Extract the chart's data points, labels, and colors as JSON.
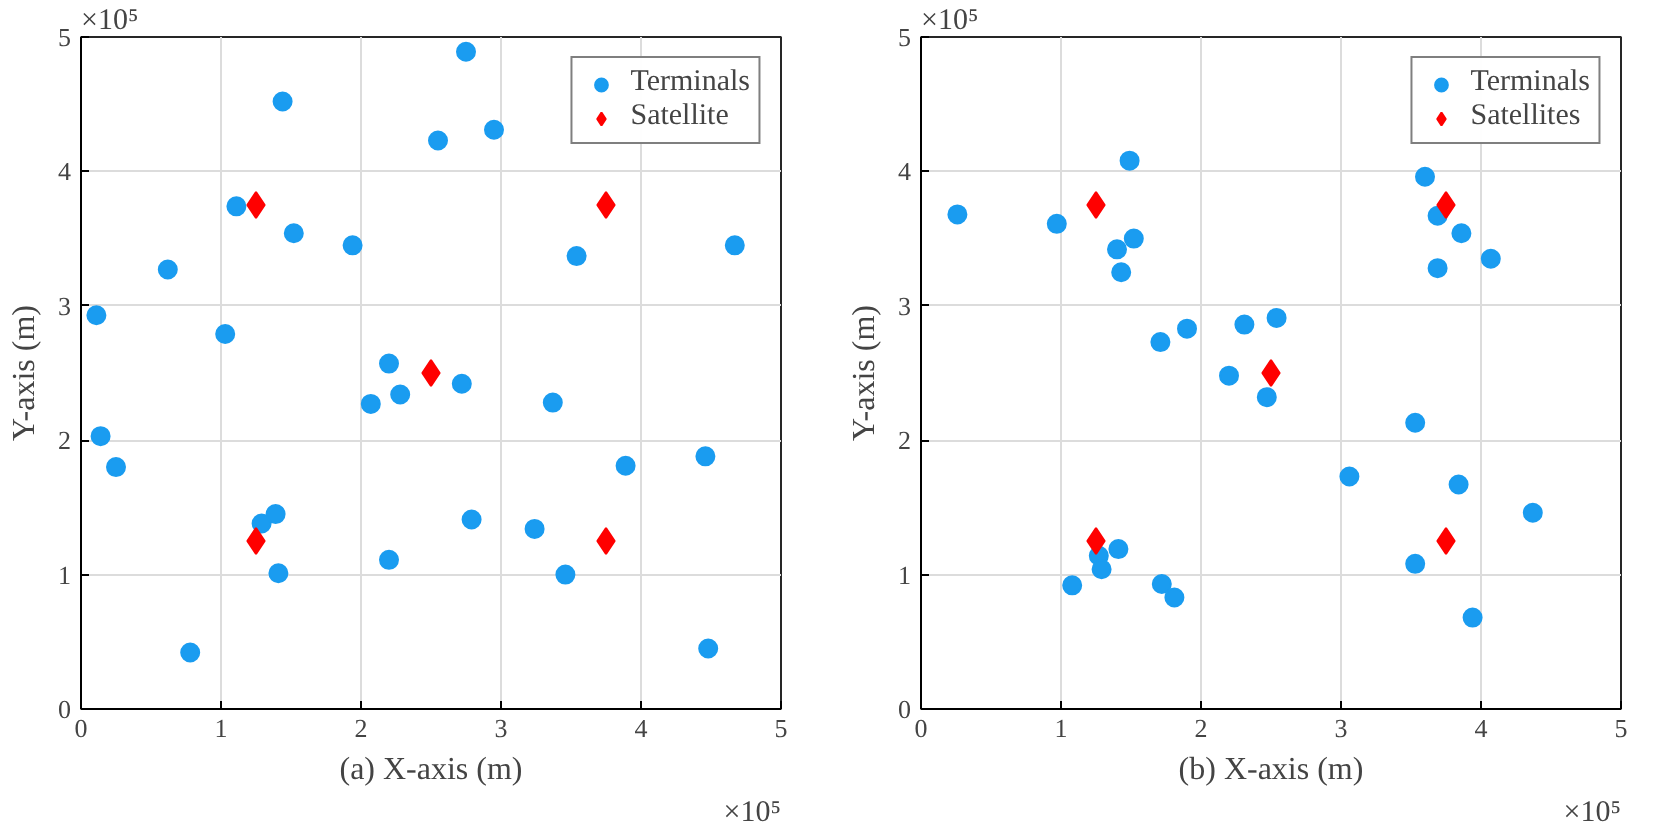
{
  "chart_data": [
    {
      "type": "scatter",
      "xlabel": "(a) X-axis (m)",
      "ylabel": "Y-axis (m)",
      "xlim": [
        0,
        5
      ],
      "ylim": [
        0,
        5
      ],
      "xticks": [
        0,
        1,
        2,
        3,
        4,
        5
      ],
      "yticks": [
        0,
        1,
        2,
        3,
        4,
        5
      ],
      "grid": true,
      "legend": "top right",
      "annotations": [
        "×10⁵",
        "×10⁵"
      ],
      "series": [
        {
          "name": "Terminals",
          "color": "#1a9cf0",
          "marker": "circle",
          "x": [
            2.75,
            1.44,
            2.55,
            2.95,
            1.11,
            1.52,
            1.94,
            0.62,
            3.54,
            4.67,
            0.11,
            1.03,
            2.2,
            2.07,
            2.28,
            2.72,
            3.37,
            0.14,
            0.25,
            3.89,
            4.46,
            1.29,
            1.39,
            1.41,
            2.2,
            2.79,
            3.24,
            3.46,
            0.78,
            4.48
          ],
          "values": [
            4.89,
            4.52,
            4.23,
            4.31,
            3.74,
            3.54,
            3.45,
            3.27,
            3.37,
            3.45,
            2.93,
            2.79,
            2.57,
            2.27,
            2.34,
            2.42,
            2.28,
            2.03,
            1.8,
            1.81,
            1.88,
            1.38,
            1.45,
            1.01,
            1.11,
            1.41,
            1.34,
            1.0,
            0.42,
            0.45
          ]
        },
        {
          "name": "Satellite",
          "color": "#ff0000",
          "marker": "diamond",
          "x": [
            1.25,
            3.75,
            2.5,
            1.25,
            3.75
          ],
          "values": [
            3.75,
            3.75,
            2.5,
            1.25,
            1.25
          ]
        }
      ]
    },
    {
      "type": "scatter",
      "xlabel": "(b) X-axis (m)",
      "ylabel": "Y-axis (m)",
      "xlim": [
        0,
        5
      ],
      "ylim": [
        0,
        5
      ],
      "xticks": [
        0,
        1,
        2,
        3,
        4,
        5
      ],
      "yticks": [
        0,
        1,
        2,
        3,
        4,
        5
      ],
      "grid": true,
      "legend": "top right",
      "annotations": [
        "×10⁵",
        "×10⁵"
      ],
      "series": [
        {
          "name": "Terminals",
          "color": "#1a9cf0",
          "marker": "circle",
          "x": [
            0.26,
            0.97,
            1.49,
            1.4,
            1.52,
            1.43,
            1.71,
            1.9,
            2.31,
            2.54,
            2.2,
            2.47,
            3.6,
            3.69,
            3.86,
            3.69,
            4.07,
            3.53,
            3.06,
            3.84,
            4.37,
            3.53,
            3.94,
            1.27,
            1.29,
            1.41,
            1.08,
            1.72,
            1.81
          ],
          "values": [
            3.68,
            3.61,
            4.08,
            3.42,
            3.5,
            3.25,
            2.73,
            2.83,
            2.86,
            2.91,
            2.48,
            2.32,
            3.96,
            3.67,
            3.54,
            3.28,
            3.35,
            2.13,
            1.73,
            1.67,
            1.46,
            1.08,
            0.68,
            1.14,
            1.04,
            1.19,
            0.92,
            0.93,
            0.83
          ]
        },
        {
          "name": "Satellites",
          "color": "#ff0000",
          "marker": "diamond",
          "x": [
            1.25,
            3.75,
            2.5,
            1.25,
            3.75
          ],
          "values": [
            3.75,
            3.75,
            2.5,
            1.25,
            1.25
          ]
        }
      ]
    }
  ]
}
